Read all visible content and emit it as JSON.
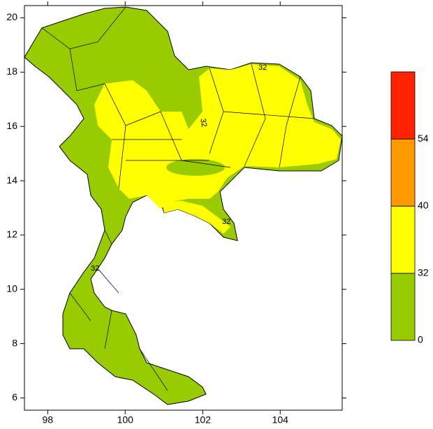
{
  "chart_data": {
    "type": "map",
    "xlim": [
      97.4,
      105.6
    ],
    "ylim": [
      5.55,
      20.45
    ],
    "xticks": [
      98,
      100,
      102,
      104
    ],
    "yticks": [
      6,
      8,
      10,
      12,
      14,
      16,
      18,
      20
    ],
    "colorbar": {
      "ticks": [
        0,
        32,
        40,
        54
      ],
      "colors": [
        "#99cc00",
        "#ffff00",
        "#ff9900",
        "#ff2200"
      ]
    },
    "contour_labels": [
      "32",
      "32",
      "32",
      "32"
    ]
  }
}
